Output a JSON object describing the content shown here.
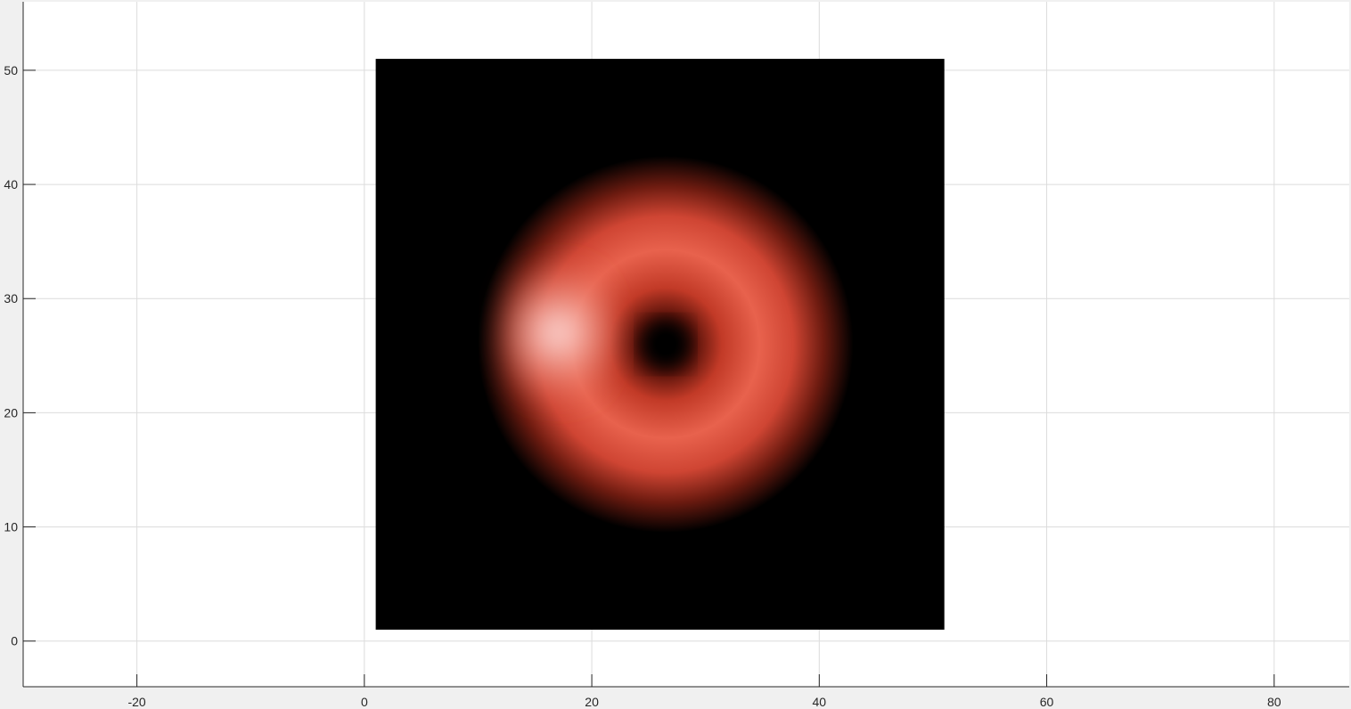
{
  "chart_data": {
    "type": "heatmap",
    "title": "",
    "xlabel": "",
    "ylabel": "",
    "xlim": [
      -30,
      86.6
    ],
    "ylim": [
      -4,
      56
    ],
    "grid": true,
    "x_ticks": [
      -20,
      0,
      20,
      40,
      60,
      80
    ],
    "y_ticks": [
      0,
      10,
      20,
      30,
      40,
      50
    ],
    "image": {
      "x_range": [
        1,
        51
      ],
      "y_range": [
        1,
        51
      ],
      "colormap": [
        "#000000",
        "#7a1a0e",
        "#c83c2a",
        "#ea6d58",
        "#ffe6e6"
      ],
      "background_value": 0,
      "feature": {
        "shape": "ring",
        "center": [
          26.5,
          26
        ],
        "outer_radius": 16.5,
        "inner_radius": 2,
        "peak_radius": 8.5,
        "brightest_side": "left",
        "brightest_point": [
          17,
          27
        ]
      }
    }
  }
}
